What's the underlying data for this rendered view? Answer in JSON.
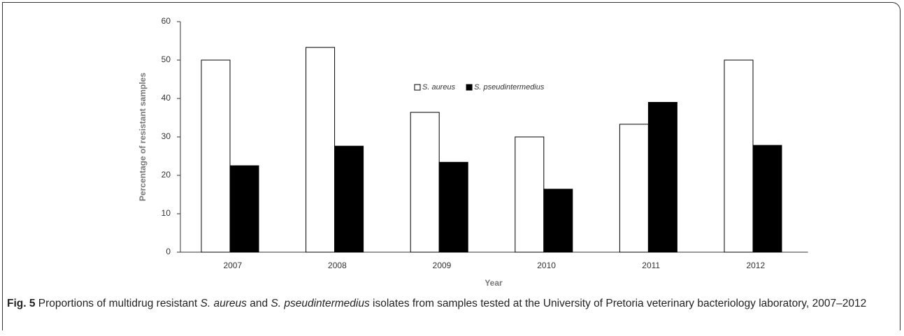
{
  "chart_data": {
    "type": "bar",
    "categories": [
      "2007",
      "2008",
      "2009",
      "2010",
      "2011",
      "2012"
    ],
    "series": [
      {
        "name": "S. aureus",
        "color": "#ffffff",
        "values": [
          50,
          53.3,
          36.4,
          30,
          33.3,
          50
        ]
      },
      {
        "name": "S. pseudintermedius",
        "color": "#000000",
        "values": [
          22.5,
          27.6,
          23.4,
          16.4,
          39,
          27.8
        ]
      }
    ],
    "ylim": [
      0,
      60
    ],
    "yticks": [
      0,
      10,
      20,
      30,
      40,
      50,
      60
    ],
    "y_label": "Percentage of resistant samples",
    "x_label": "Year",
    "legend": "top",
    "caption": {
      "label": "Fig. 5",
      "parts": [
        "Proportions of multidrug resistant ",
        "S. aureus",
        " and ",
        "S. pseudintermedius",
        " isolates from samples tested at the University of Pretoria veterinary bacteriology laboratory, 2007–2012"
      ]
    }
  }
}
